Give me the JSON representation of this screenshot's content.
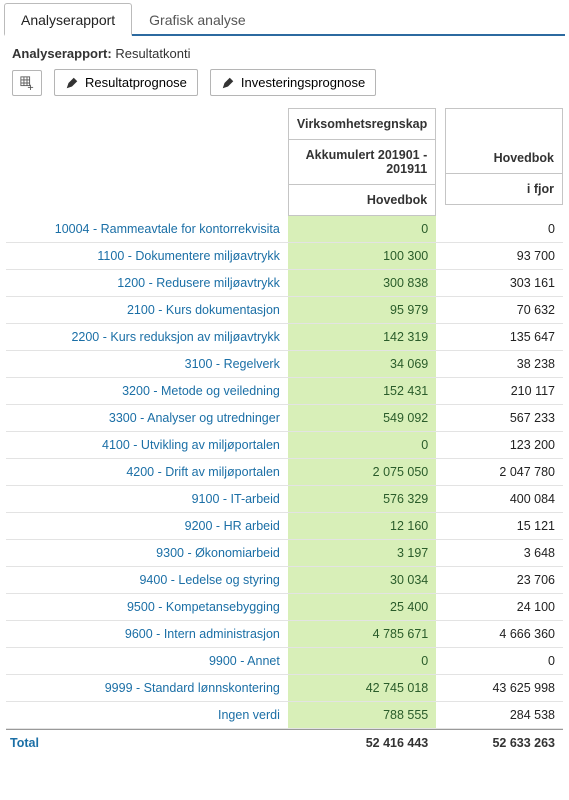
{
  "tabs": [
    {
      "label": "Analyserapport",
      "active": true
    },
    {
      "label": "Grafisk analyse",
      "active": false
    }
  ],
  "subHeader": {
    "label": "Analyserapport:",
    "value": "Resultatkonti"
  },
  "toolbar": {
    "addBtn": "",
    "resultBtn": "Resultatprognose",
    "investBtn": "Investeringsprognose"
  },
  "columns": {
    "groupA_line1": "Virksomhetsregnskap",
    "groupA_line2": "Akkumulert 201901 - 201911",
    "groupA_line3": "Hovedbok",
    "groupB_line1": "Hovedbok",
    "groupB_line2": "i fjor"
  },
  "rows": [
    {
      "label": "10004 - Rammeavtale for kontorrekvisita",
      "a": "0",
      "b": "0"
    },
    {
      "label": "1100 - Dokumentere miljøavtrykk",
      "a": "100 300",
      "b": "93 700"
    },
    {
      "label": "1200 - Redusere miljøavtrykk",
      "a": "300 838",
      "b": "303 161"
    },
    {
      "label": "2100 - Kurs dokumentasjon",
      "a": "95 979",
      "b": "70 632"
    },
    {
      "label": "2200 - Kurs reduksjon av miljøavtrykk",
      "a": "142 319",
      "b": "135 647"
    },
    {
      "label": "3100 - Regelverk",
      "a": "34 069",
      "b": "38 238"
    },
    {
      "label": "3200 - Metode og veiledning",
      "a": "152 431",
      "b": "210 117"
    },
    {
      "label": "3300 - Analyser og utredninger",
      "a": "549 092",
      "b": "567 233"
    },
    {
      "label": "4100 - Utvikling av miljøportalen",
      "a": "0",
      "b": "123 200"
    },
    {
      "label": "4200 - Drift av miljøportalen",
      "a": "2 075 050",
      "b": "2 047 780"
    },
    {
      "label": "9100 - IT-arbeid",
      "a": "576 329",
      "b": "400 084"
    },
    {
      "label": "9200 - HR arbeid",
      "a": "12 160",
      "b": "15 121"
    },
    {
      "label": "9300 - Økonomiarbeid",
      "a": "3 197",
      "b": "3 648"
    },
    {
      "label": "9400 - Ledelse og styring",
      "a": "30 034",
      "b": "23 706"
    },
    {
      "label": "9500 - Kompetansebygging",
      "a": "25 400",
      "b": "24 100"
    },
    {
      "label": "9600 - Intern administrasjon",
      "a": "4 785 671",
      "b": "4 666 360"
    },
    {
      "label": "9900 - Annet",
      "a": "0",
      "b": "0"
    },
    {
      "label": "9999 - Standard lønnskontering",
      "a": "42 745 018",
      "b": "43 625 998"
    },
    {
      "label": "Ingen verdi",
      "a": "788 555",
      "b": "284 538"
    }
  ],
  "total": {
    "label": "Total",
    "a": "52 416 443",
    "b": "52 633 263"
  },
  "colors": {
    "link": "#1b6fa6",
    "greenBg": "#d8efb8",
    "greenText": "#2a5c2a",
    "border": "#c5c5c5",
    "tabBorder": "#2c6aa0"
  }
}
